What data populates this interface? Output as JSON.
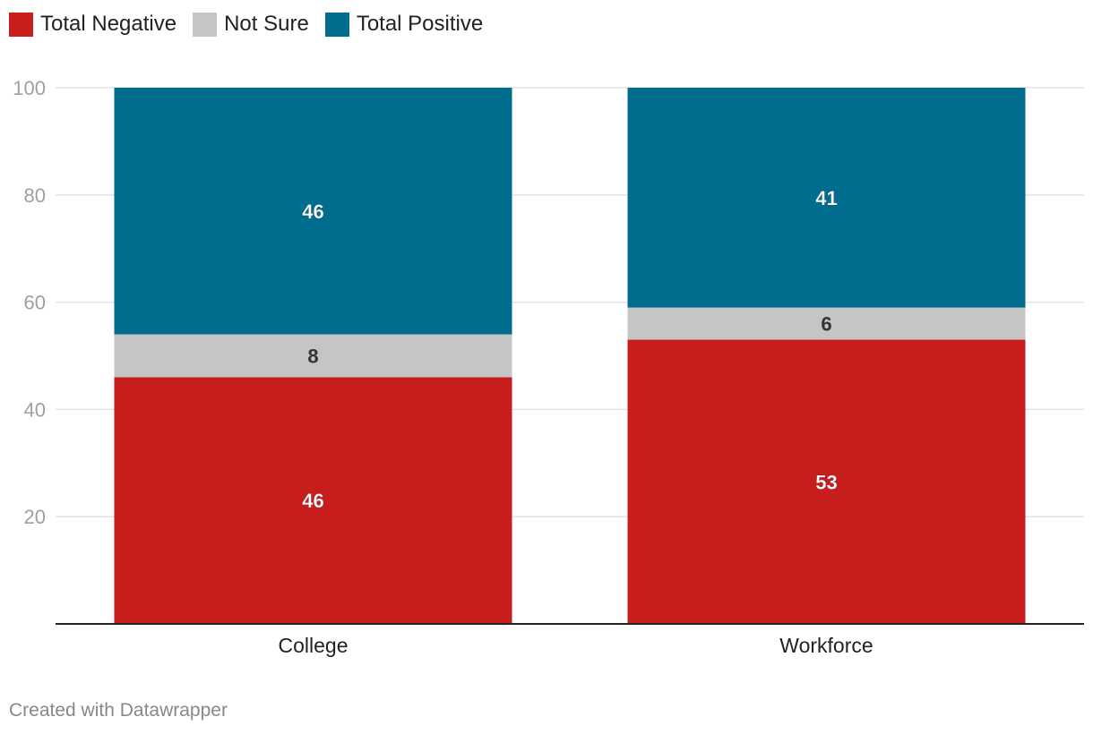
{
  "chart_data": {
    "type": "bar",
    "stacked": true,
    "categories": [
      "College",
      "Workforce"
    ],
    "series": [
      {
        "name": "Total Negative",
        "color": "#c71e1d",
        "values": [
          46,
          53
        ],
        "label_color": "#ffffff"
      },
      {
        "name": "Not Sure",
        "color": "#c5c5c5",
        "values": [
          8,
          6
        ],
        "label_color": "#333333"
      },
      {
        "name": "Total Positive",
        "color": "#006d8f",
        "values": [
          46,
          41
        ],
        "label_color": "#ffffff"
      }
    ],
    "ylim": [
      0,
      100
    ],
    "yticks": [
      20,
      40,
      60,
      80,
      100
    ],
    "title": "",
    "xlabel": "",
    "ylabel": "",
    "legend_position": "top-left",
    "grid": true
  },
  "footer": {
    "credit": "Created with Datawrapper"
  }
}
